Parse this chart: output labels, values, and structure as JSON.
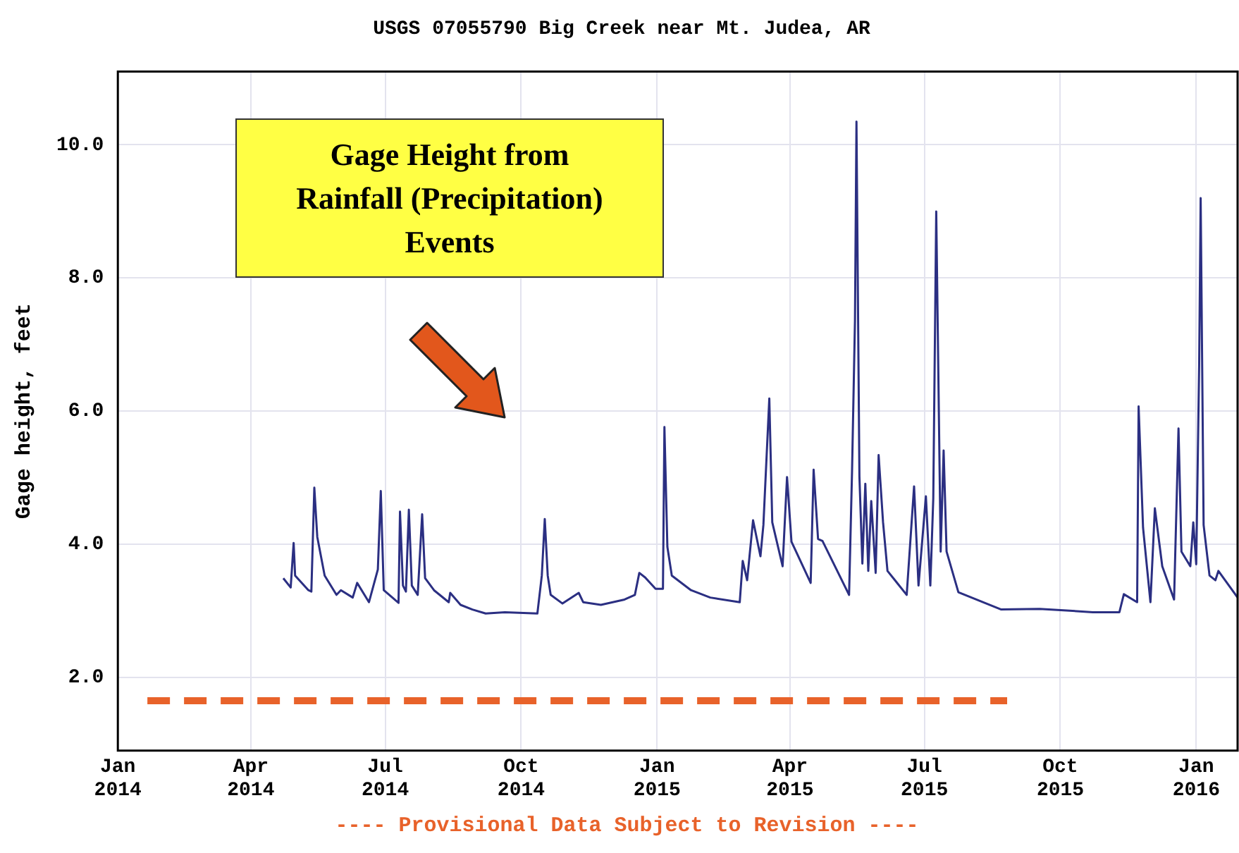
{
  "chart_data": {
    "type": "line",
    "title": "USGS 07055790 Big Creek near Mt. Judea, AR",
    "ylabel": "Gage height, feet",
    "annotations": [
      "Gage Height from Rainfall (Precipitation) Events"
    ],
    "xlim": [
      "2014-01-01",
      "2016-01-29"
    ],
    "xticks": [
      {
        "value": "2014-01-01",
        "label": "Jan 2014"
      },
      {
        "value": "2014-04-01",
        "label": "Apr 2014"
      },
      {
        "value": "2014-07-01",
        "label": "Jul 2014"
      },
      {
        "value": "2014-10-01",
        "label": "Oct 2014"
      },
      {
        "value": "2015-01-01",
        "label": "Jan 2015"
      },
      {
        "value": "2015-04-01",
        "label": "Apr 2015"
      },
      {
        "value": "2015-07-01",
        "label": "Jul 2015"
      },
      {
        "value": "2015-10-01",
        "label": "Oct 2015"
      },
      {
        "value": "2016-01-01",
        "label": "Jan 2016"
      }
    ],
    "ylim": [
      0.9,
      11.1
    ],
    "yticks": [
      {
        "value": 2,
        "label": "2.0"
      },
      {
        "value": 4,
        "label": "4.0"
      },
      {
        "value": 6,
        "label": "6.0"
      },
      {
        "value": 8,
        "label": "8.0"
      },
      {
        "value": 10,
        "label": "10.0"
      }
    ],
    "grid": true,
    "legend": "bottom",
    "marker": "none",
    "series": [
      {
        "color": "#2b2f82",
        "line_style": "solid",
        "x": [
          "2014-04-23",
          "2014-04-28",
          "2014-04-30",
          "2014-05-01",
          "2014-05-10",
          "2014-05-12",
          "2014-05-14",
          "2014-05-16",
          "2014-05-21",
          "2014-05-29",
          "2014-06-01",
          "2014-06-09",
          "2014-06-12",
          "2014-06-20",
          "2014-06-26",
          "2014-06-28",
          "2014-06-30",
          "2014-07-10",
          "2014-07-11",
          "2014-07-13",
          "2014-07-15",
          "2014-07-17",
          "2014-07-19",
          "2014-07-23",
          "2014-07-26",
          "2014-07-28",
          "2014-08-03",
          "2014-08-13",
          "2014-08-14",
          "2014-08-21",
          "2014-08-29",
          "2014-09-07",
          "2014-09-20",
          "2014-10-12",
          "2014-10-15",
          "2014-10-17",
          "2014-10-19",
          "2014-10-21",
          "2014-10-29",
          "2014-11-09",
          "2014-11-12",
          "2014-11-24",
          "2014-12-10",
          "2014-12-17",
          "2014-12-20",
          "2014-12-24",
          "2014-12-31",
          "2015-01-05",
          "2015-01-06",
          "2015-01-08",
          "2015-01-11",
          "2015-01-24",
          "2015-02-06",
          "2015-02-26",
          "2015-02-28",
          "2015-03-03",
          "2015-03-07",
          "2015-03-12",
          "2015-03-14",
          "2015-03-18",
          "2015-03-20",
          "2015-03-27",
          "2015-03-30",
          "2015-04-02",
          "2015-04-15",
          "2015-04-17",
          "2015-04-20",
          "2015-04-23",
          "2015-05-11",
          "2015-05-13",
          "2015-05-15",
          "2015-05-16",
          "2015-05-18",
          "2015-05-20",
          "2015-05-22",
          "2015-05-24",
          "2015-05-26",
          "2015-05-29",
          "2015-05-31",
          "2015-06-03",
          "2015-06-06",
          "2015-06-19",
          "2015-06-24",
          "2015-06-27",
          "2015-07-02",
          "2015-07-05",
          "2015-07-07",
          "2015-07-09",
          "2015-07-12",
          "2015-07-14",
          "2015-07-16",
          "2015-07-24",
          "2015-08-22",
          "2015-09-17",
          "2015-10-23",
          "2015-11-10",
          "2015-11-13",
          "2015-11-22",
          "2015-11-23",
          "2015-11-26",
          "2015-12-01",
          "2015-12-04",
          "2015-12-09",
          "2015-12-17",
          "2015-12-20",
          "2015-12-22",
          "2015-12-28",
          "2015-12-30",
          "2016-01-01",
          "2016-01-03",
          "2016-01-04",
          "2016-01-06",
          "2016-01-10",
          "2016-01-14",
          "2016-01-16",
          "2016-01-29"
        ],
        "values": [
          3.49,
          3.35,
          4.02,
          3.53,
          3.31,
          3.29,
          4.85,
          4.11,
          3.53,
          3.24,
          3.31,
          3.2,
          3.42,
          3.13,
          3.62,
          4.8,
          3.31,
          3.12,
          4.49,
          3.38,
          3.29,
          4.52,
          3.38,
          3.24,
          4.45,
          3.49,
          3.31,
          3.13,
          3.27,
          3.09,
          3.02,
          2.96,
          2.98,
          2.96,
          3.53,
          4.38,
          3.53,
          3.24,
          3.11,
          3.27,
          3.13,
          3.09,
          3.17,
          3.24,
          3.57,
          3.5,
          3.33,
          3.33,
          5.76,
          3.96,
          3.53,
          3.31,
          3.2,
          3.13,
          3.75,
          3.46,
          4.36,
          3.82,
          4.29,
          6.19,
          4.33,
          3.67,
          5.01,
          4.04,
          3.42,
          5.12,
          4.08,
          4.05,
          3.24,
          5.09,
          7.37,
          10.35,
          5.02,
          3.71,
          4.91,
          3.6,
          4.65,
          3.57,
          5.34,
          4.33,
          3.6,
          3.24,
          4.87,
          3.38,
          4.72,
          3.38,
          4.69,
          9.0,
          3.89,
          5.41,
          3.89,
          3.28,
          3.02,
          3.03,
          2.98,
          2.98,
          3.25,
          3.13,
          6.07,
          4.25,
          3.13,
          4.54,
          3.67,
          3.17,
          5.74,
          3.89,
          3.67,
          4.33,
          3.7,
          6.72,
          9.2,
          4.29,
          3.53,
          3.46,
          3.6,
          3.2
        ]
      },
      {
        "name": "---- Provisional Data Subject to Revision ----",
        "color": "#e8622a",
        "line_style": "dashed",
        "x": [
          "2014-01-21",
          "2015-08-26"
        ],
        "values": [
          1.65,
          1.65
        ]
      }
    ]
  }
}
